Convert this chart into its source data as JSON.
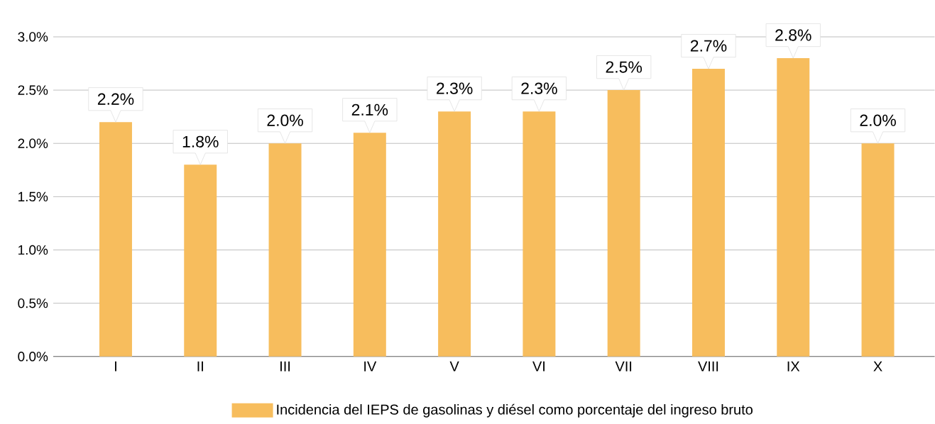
{
  "chart_data": {
    "type": "bar",
    "categories": [
      "I",
      "II",
      "III",
      "IV",
      "V",
      "VI",
      "VII",
      "VIII",
      "IX",
      "X"
    ],
    "series": [
      {
        "name": "Incidencia del IEPS de gasolinas y diésel como porcentaje del ingreso bruto",
        "color": "#f7bd5d",
        "values": [
          2.2,
          1.8,
          2.0,
          2.1,
          2.3,
          2.3,
          2.5,
          2.7,
          2.8,
          2.0
        ],
        "value_labels": [
          "2.2%",
          "1.8%",
          "2.0%",
          "2.1%",
          "2.3%",
          "2.3%",
          "2.5%",
          "2.7%",
          "2.8%",
          "2.0%"
        ]
      }
    ],
    "ylim": [
      0,
      3
    ],
    "yticks": [
      {
        "value": 0,
        "label": "0.0%"
      },
      {
        "value": 0.5,
        "label": "0.5%"
      },
      {
        "value": 1,
        "label": "1.0%"
      },
      {
        "value": 1.5,
        "label": "1.5%"
      },
      {
        "value": 2,
        "label": "2.0%"
      },
      {
        "value": 2.5,
        "label": "2.5%"
      },
      {
        "value": 3,
        "label": "3.0%"
      }
    ],
    "grid": "y",
    "legend": "bottom"
  }
}
